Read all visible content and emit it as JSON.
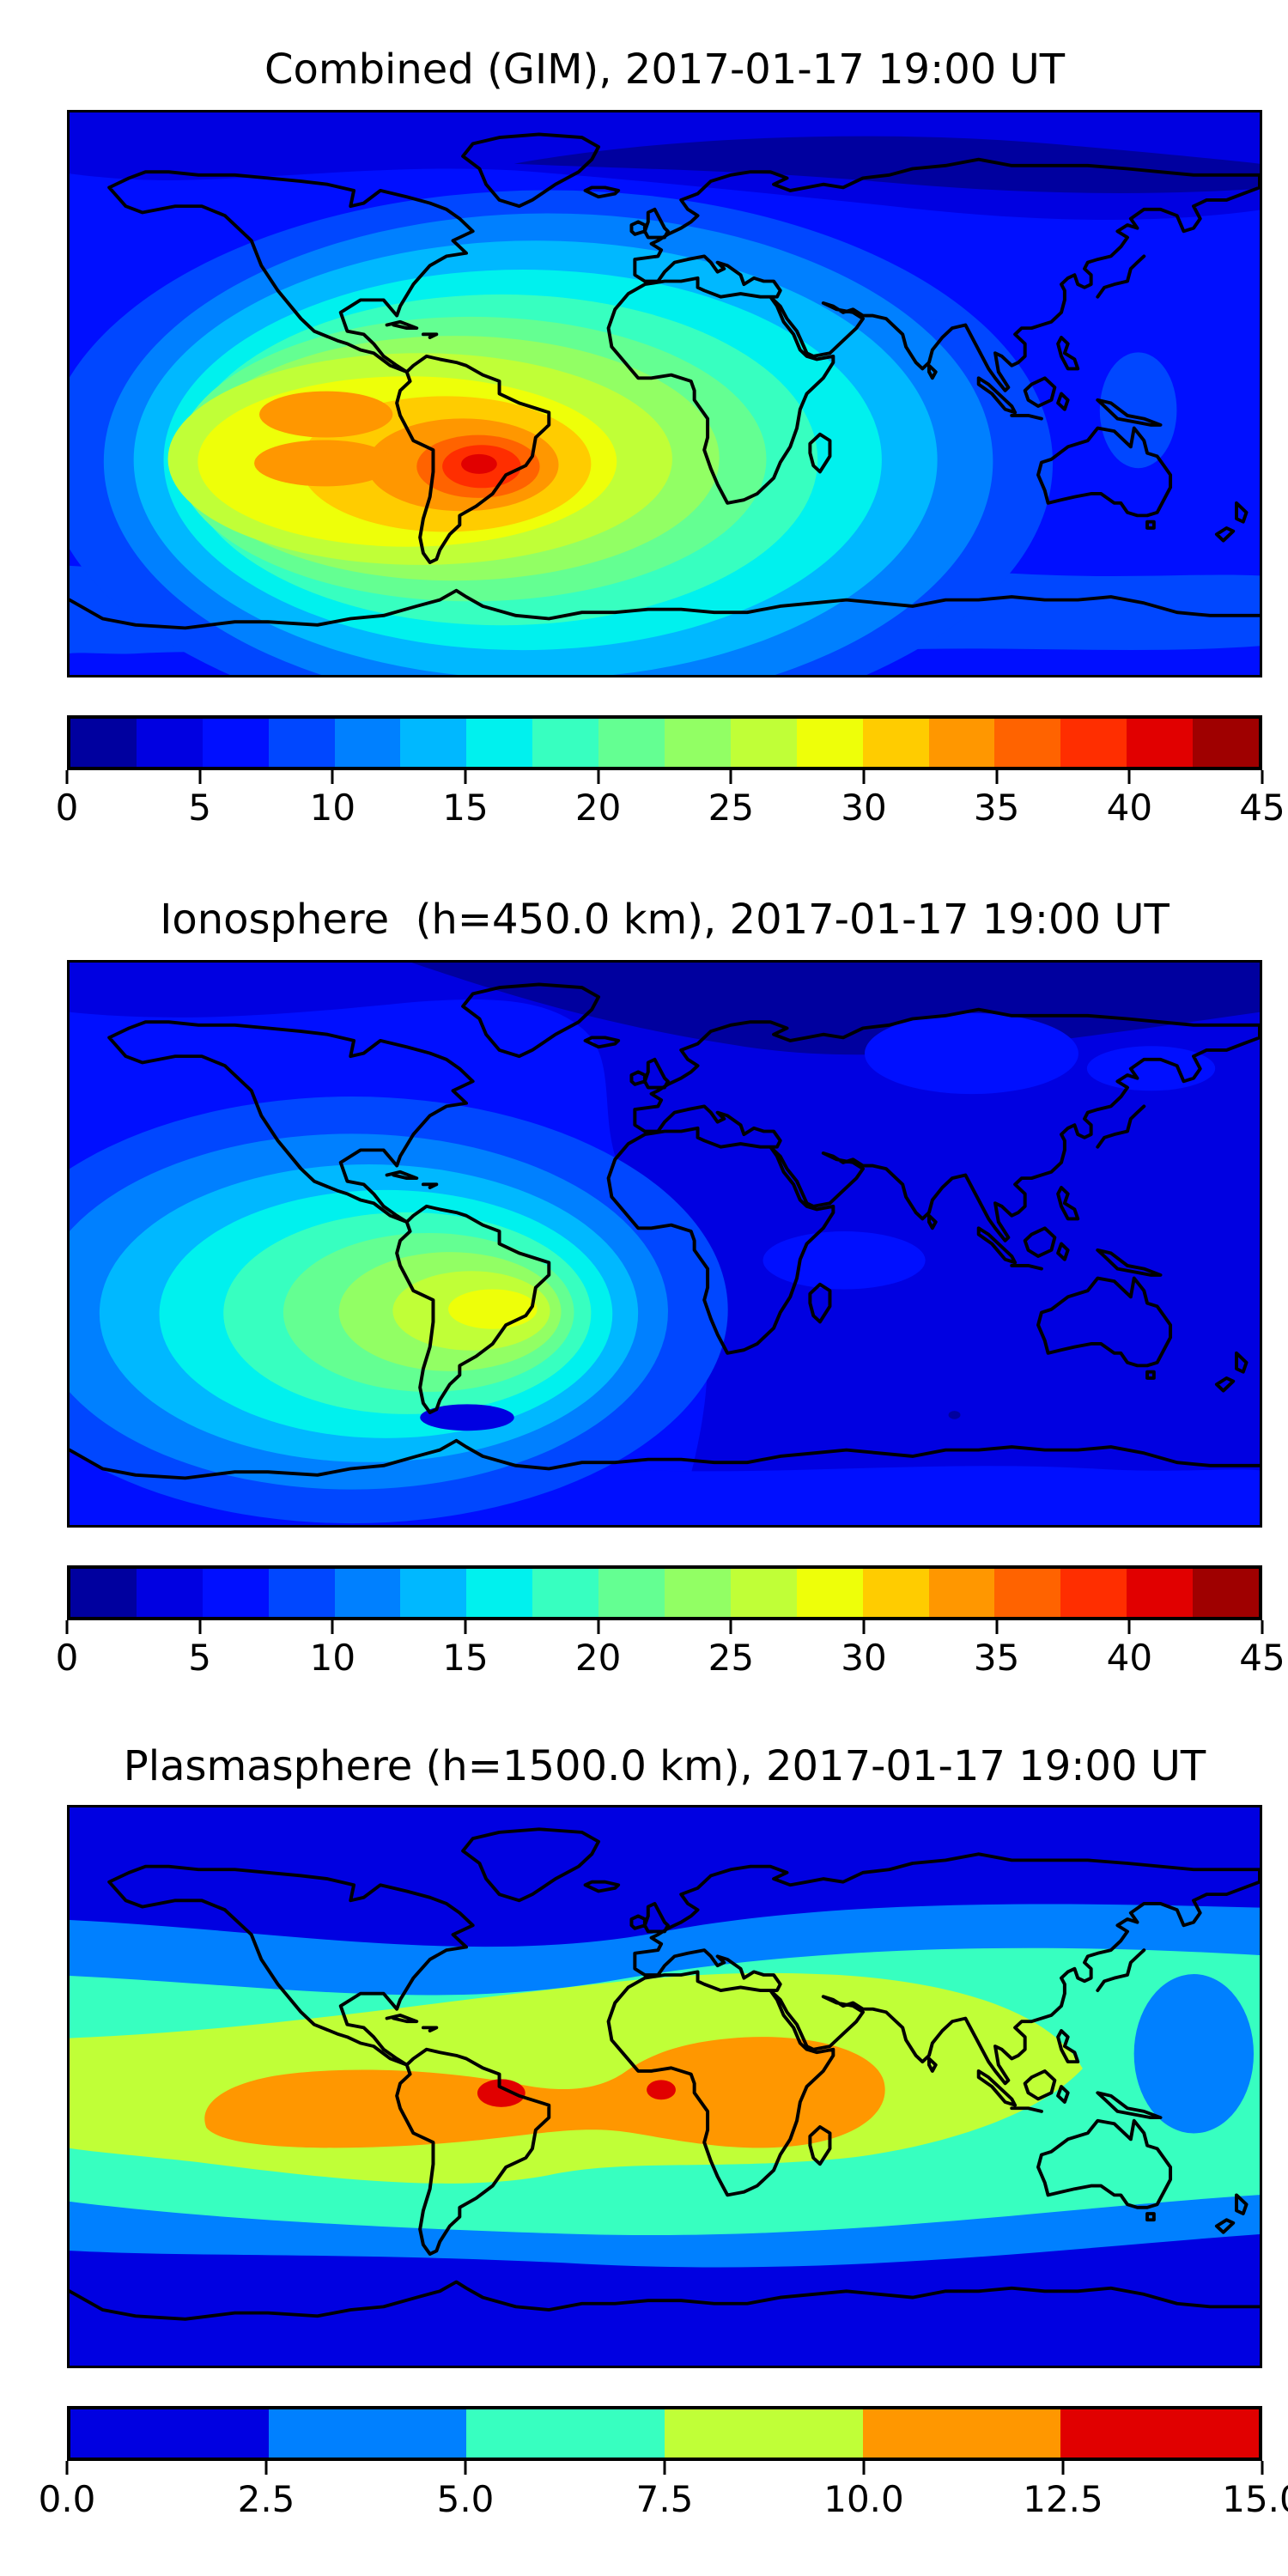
{
  "figure": {
    "background": "#ffffff",
    "coastline_color": "#000000",
    "panels": [
      {
        "id": "combined-gim",
        "title": "Combined (GIM), 2017-01-17 19:00 UT",
        "colorbar": {
          "min": 0,
          "max": 45,
          "n_segments": 18,
          "colors": [
            "#00009f",
            "#0000e1",
            "#000fff",
            "#0047ff",
            "#0080ff",
            "#00b8ff",
            "#00f1ee",
            "#37ffc0",
            "#64ff92",
            "#92ff64",
            "#c0ff37",
            "#eeff09",
            "#ffcc00",
            "#ff9700",
            "#ff6300",
            "#ff2e00",
            "#e10000",
            "#9f0000"
          ],
          "tick_values": [
            0,
            5,
            10,
            15,
            20,
            25,
            30,
            35,
            40,
            45
          ],
          "tick_labels": [
            "0",
            "5",
            "10",
            "15",
            "20",
            "25",
            "30",
            "35",
            "40",
            "45"
          ]
        }
      },
      {
        "id": "ionosphere",
        "title": "Ionosphere  (h=450.0 km), 2017-01-17 19:00 UT",
        "colorbar": {
          "min": 0,
          "max": 45,
          "n_segments": 18,
          "colors": [
            "#00009f",
            "#0000e1",
            "#000fff",
            "#0047ff",
            "#0080ff",
            "#00b8ff",
            "#00f1ee",
            "#37ffc0",
            "#64ff92",
            "#92ff64",
            "#c0ff37",
            "#eeff09",
            "#ffcc00",
            "#ff9700",
            "#ff6300",
            "#ff2e00",
            "#e10000",
            "#9f0000"
          ],
          "tick_values": [
            0,
            5,
            10,
            15,
            20,
            25,
            30,
            35,
            40,
            45
          ],
          "tick_labels": [
            "0",
            "5",
            "10",
            "15",
            "20",
            "25",
            "30",
            "35",
            "40",
            "45"
          ]
        }
      },
      {
        "id": "plasmasphere",
        "title": "Plasmasphere (h=1500.0 km), 2017-01-17 19:00 UT",
        "colorbar": {
          "min": 0,
          "max": 15,
          "n_segments": 6,
          "colors": [
            "#0000e1",
            "#0080ff",
            "#37ffc0",
            "#c0ff37",
            "#ff9700",
            "#e10000"
          ],
          "tick_values": [
            0,
            2.5,
            5,
            7.5,
            10,
            12.5,
            15
          ],
          "tick_labels": [
            "0.0",
            "2.5",
            "5.0",
            "7.5",
            "10.0",
            "12.5",
            "15.0"
          ]
        }
      }
    ]
  },
  "chart_data": [
    {
      "type": "heatmap",
      "title": "Combined (GIM), 2017-01-17 19:00 UT",
      "projection": "equirectangular world map, lon -180..180, lat 90..-90, no axis tick labels",
      "colormap": "jet (discrete filled contours)",
      "levels": {
        "min": 0,
        "max": 45,
        "step": 2.5,
        "n_bands": 18
      },
      "colorbar_ticks": [
        0,
        5,
        10,
        15,
        20,
        25,
        30,
        35,
        40,
        45
      ],
      "legend_position": "horizontal colorbar below map",
      "features": [
        {
          "name": "global maximum",
          "location": "southeastern South America, ~55W ~25S",
          "value_range": "40-45"
        },
        {
          "name": "enhanced anomaly region",
          "location": "eastern Pacific across South America to mid-Atlantic",
          "value_range": "15-40"
        },
        {
          "name": "cyan tongue",
          "location": "equatorial Atlantic toward west Africa",
          "value_range": "12.5-17.5"
        },
        {
          "name": "minimum",
          "location": "Arctic / Siberian high latitudes",
          "value_range": "0-5"
        },
        {
          "name": "secondary low",
          "location": "southern Indian Ocean",
          "value_range": "2.5-5"
        }
      ]
    },
    {
      "type": "heatmap",
      "title": "Ionosphere  (h=450.0 km), 2017-01-17 19:00 UT",
      "projection": "equirectangular world map, lon -180..180, lat 90..-90, no axis tick labels",
      "colormap": "jet (discrete filled contours)",
      "levels": {
        "min": 0,
        "max": 45,
        "step": 2.5,
        "n_bands": 18
      },
      "colorbar_ticks": [
        0,
        5,
        10,
        15,
        20,
        25,
        30,
        35,
        40,
        45
      ],
      "legend_position": "horizontal colorbar below map",
      "features": [
        {
          "name": "maximum",
          "location": "southeastern Brazil coast, ~45W ~25S",
          "value_range": "27.5-30"
        },
        {
          "name": "enhanced region",
          "location": "eastern Pacific and South America",
          "value_range": "10-27.5"
        },
        {
          "name": "minimum",
          "location": "Asia / Indian Ocean night side and high northern latitudes",
          "value_range": "0-5"
        }
      ]
    },
    {
      "type": "heatmap",
      "title": "Plasmasphere (h=1500.0 km), 2017-01-17 19:00 UT",
      "projection": "equirectangular world map, lon -180..180, lat 90..-90, no axis tick labels",
      "colormap": "jet (discrete filled contours)",
      "levels": {
        "min": 0,
        "max": 15,
        "step": 2.5,
        "n_bands": 6
      },
      "colorbar_ticks": [
        0,
        2.5,
        5,
        7.5,
        10,
        12.5,
        15
      ],
      "legend_position": "horizontal colorbar below map",
      "features": [
        {
          "name": "equatorial belt maximum",
          "location": "band from eastern Pacific across South America and Africa to Arabia",
          "value_range": "10-12.5"
        },
        {
          "name": "local maxima (red spots)",
          "location": "northeastern Brazil ~48W ~4S and Gabon/Congo ~10E ~3S",
          "value_range": "12.5-15"
        },
        {
          "name": "azure dip",
          "location": "western Pacific near Philippines/Japan",
          "value_range": "2.5-5"
        },
        {
          "name": "minimum",
          "location": "high latitudes north and south",
          "value_range": "0-2.5"
        }
      ]
    }
  ]
}
